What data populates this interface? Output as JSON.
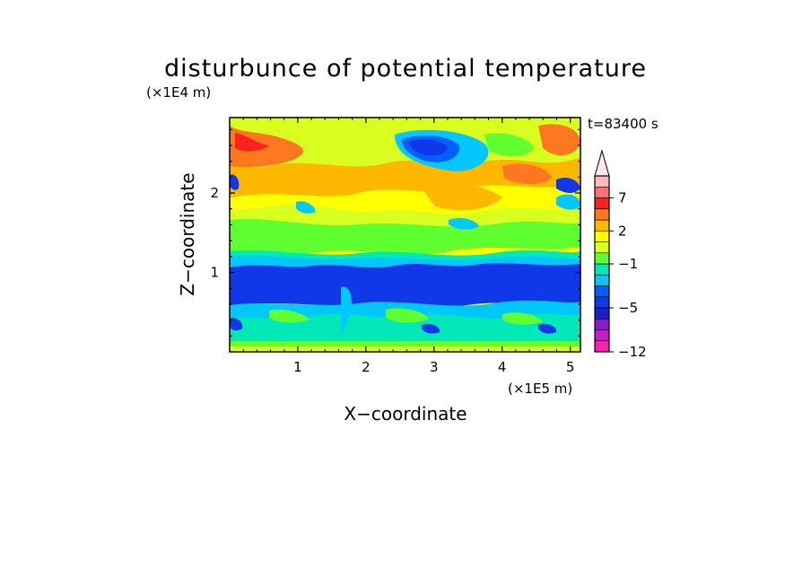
{
  "chart_data": {
    "type": "heatmap",
    "title": "disturbunce of potential temperature",
    "xlabel": "X−coordinate",
    "ylabel": "Z−coordinate",
    "x_unit": "(×1E5 m)",
    "y_unit": "(×1E4 m)",
    "time_label": "t=83400 s",
    "xlim": [
      0,
      5.15
    ],
    "ylim": [
      0,
      2.95
    ],
    "x_ticks": [
      {
        "value": 1,
        "label": "1"
      },
      {
        "value": 2,
        "label": "2"
      },
      {
        "value": 3,
        "label": "3"
      },
      {
        "value": 4,
        "label": "4"
      },
      {
        "value": 5,
        "label": "5"
      }
    ],
    "y_ticks": [
      {
        "value": 1,
        "label": "1"
      },
      {
        "value": 2,
        "label": "2"
      }
    ],
    "colorbar": {
      "levels": [
        -12,
        -11,
        -9,
        -7,
        -5,
        -4,
        -3,
        -2,
        -1,
        0,
        1,
        2,
        3,
        5,
        7,
        9,
        11
      ],
      "colors": [
        "#ff20b0",
        "#c020c0",
        "#8020c0",
        "#2020c0",
        "#1038e8",
        "#0060ff",
        "#00c8ff",
        "#00e8b8",
        "#60ff30",
        "#d8ff20",
        "#ffff00",
        "#ffb800",
        "#ff7820",
        "#ff2020",
        "#ff7070",
        "#ffb8c0"
      ],
      "extend_color": "#ffe8e8",
      "labels": [
        {
          "value": -12,
          "label": "−12"
        },
        {
          "value": -5,
          "label": "−5"
        },
        {
          "value": -1,
          "label": "−1"
        },
        {
          "value": 2,
          "label": "2"
        },
        {
          "value": 7,
          "label": "7"
        }
      ]
    }
  }
}
